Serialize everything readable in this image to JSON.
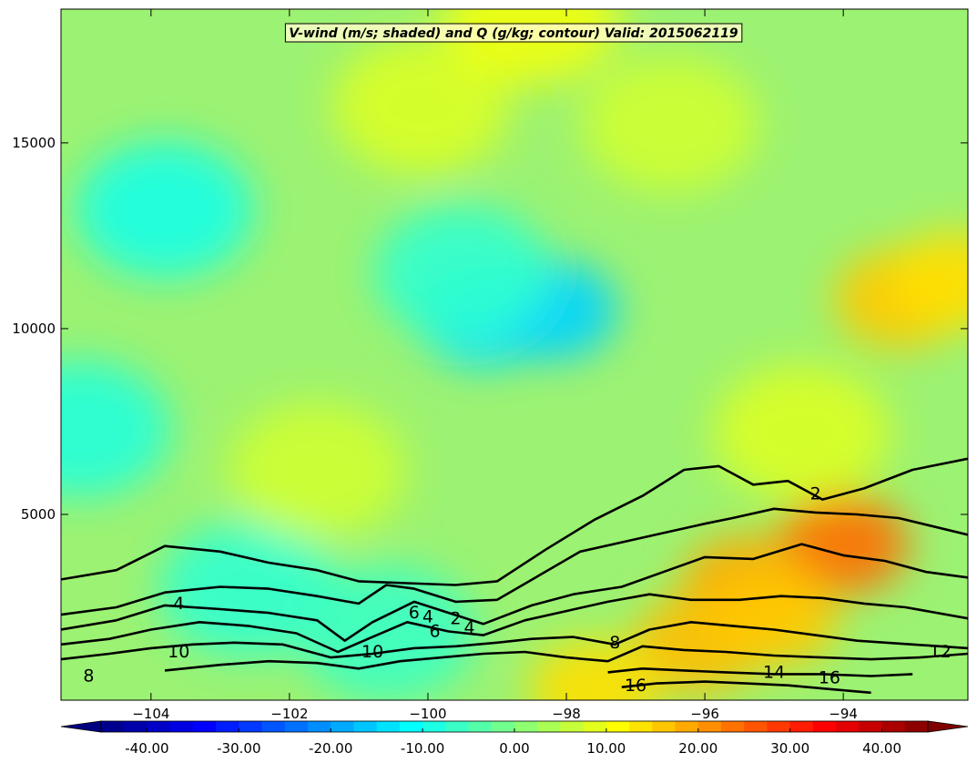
{
  "chart_data": {
    "type": "heatmap",
    "title": "V-wind (m/s; shaded) and Q (g/kg; contour) Valid: 2015062119",
    "xlabel": "",
    "ylabel": "",
    "xlim": [
      -105.3,
      -92.2
    ],
    "ylim": [
      0,
      18600
    ],
    "x_ticks": [
      -104,
      -102,
      -100,
      -98,
      -96,
      -94
    ],
    "x_tick_labels": [
      "−104",
      "−102",
      "−100",
      "−98",
      "−96",
      "−94"
    ],
    "y_ticks": [
      5000,
      10000,
      15000
    ],
    "y_tick_labels": [
      "5000",
      "10000",
      "15000"
    ],
    "colorbar": {
      "min": -45,
      "max": 45,
      "step": 2.5,
      "extend": "both",
      "tick_values": [
        -40,
        -30,
        -20,
        -10,
        0,
        10,
        20,
        30,
        40
      ],
      "tick_labels": [
        "-40.00",
        "-30.00",
        "-20.00",
        "-10.00",
        "0.00",
        "10.00",
        "20.00",
        "30.00",
        "40.00"
      ]
    },
    "vwind_features": [
      {
        "x": -99.2,
        "y": 10300,
        "value": -14
      },
      {
        "x": -98.2,
        "y": 10500,
        "value": -15
      },
      {
        "x": -103.8,
        "y": 13200,
        "value": -9
      },
      {
        "x": -105.0,
        "y": 7300,
        "value": -8
      },
      {
        "x": -99.5,
        "y": 11500,
        "value": -7
      },
      {
        "x": -102.6,
        "y": 3000,
        "value": -7
      },
      {
        "x": -100.6,
        "y": 1800,
        "value": -6
      },
      {
        "x": -93.2,
        "y": 10800,
        "value": 16
      },
      {
        "x": -92.4,
        "y": 11300,
        "value": 14
      },
      {
        "x": -94.0,
        "y": 4200,
        "value": 24
      },
      {
        "x": -95.4,
        "y": 3100,
        "value": 19
      },
      {
        "x": -96.1,
        "y": 1500,
        "value": 17
      },
      {
        "x": -95.0,
        "y": 2200,
        "value": 16
      },
      {
        "x": -97.6,
        "y": 300,
        "value": 14
      },
      {
        "x": -100.1,
        "y": 16000,
        "value": 8
      },
      {
        "x": -101.6,
        "y": 6200,
        "value": 7
      },
      {
        "x": -94.6,
        "y": 7200,
        "value": 8
      },
      {
        "x": -98.5,
        "y": 18400,
        "value": 10
      },
      {
        "x": -96.5,
        "y": 15500,
        "value": 7
      }
    ],
    "q_contours": [
      {
        "level": 2,
        "points": [
          [
            -105.3,
            3250
          ],
          [
            -104.5,
            3500
          ],
          [
            -103.8,
            4150
          ],
          [
            -103.0,
            4000
          ],
          [
            -102.3,
            3700
          ],
          [
            -101.6,
            3500
          ],
          [
            -101.0,
            3200
          ],
          [
            -100.3,
            3150
          ],
          [
            -99.6,
            3100
          ],
          [
            -99.0,
            3200
          ],
          [
            -98.3,
            4050
          ],
          [
            -97.6,
            4850
          ],
          [
            -96.9,
            5500
          ],
          [
            -96.3,
            6200
          ],
          [
            -95.8,
            6300
          ],
          [
            -95.3,
            5800
          ],
          [
            -94.8,
            5900
          ],
          [
            -94.3,
            5400
          ],
          [
            -93.7,
            5700
          ],
          [
            -93.0,
            6200
          ],
          [
            -92.2,
            6500
          ]
        ]
      },
      {
        "level": 4,
        "points": [
          [
            -105.3,
            2300
          ],
          [
            -104.5,
            2500
          ],
          [
            -103.8,
            2900
          ],
          [
            -103.0,
            3050
          ],
          [
            -102.3,
            3000
          ],
          [
            -101.6,
            2800
          ],
          [
            -101.0,
            2600
          ],
          [
            -100.6,
            3100
          ],
          [
            -100.2,
            3000
          ],
          [
            -99.6,
            2650
          ],
          [
            -99.0,
            2700
          ],
          [
            -98.4,
            3350
          ],
          [
            -97.8,
            4000
          ],
          [
            -97.2,
            4250
          ],
          [
            -96.6,
            4500
          ],
          [
            -96.0,
            4750
          ],
          [
            -95.6,
            4900
          ],
          [
            -95.0,
            5150
          ],
          [
            -94.4,
            5050
          ],
          [
            -93.8,
            5000
          ],
          [
            -93.2,
            4900
          ],
          [
            -92.2,
            4450
          ]
        ]
      },
      {
        "level": 6,
        "points": [
          [
            -105.3,
            1900
          ],
          [
            -104.5,
            2150
          ],
          [
            -103.8,
            2550
          ],
          [
            -103.0,
            2450
          ],
          [
            -102.3,
            2350
          ],
          [
            -101.6,
            2150
          ],
          [
            -101.2,
            1600
          ],
          [
            -100.8,
            2100
          ],
          [
            -100.2,
            2650
          ],
          [
            -99.7,
            2350
          ],
          [
            -99.2,
            2050
          ],
          [
            -98.5,
            2550
          ],
          [
            -97.9,
            2850
          ],
          [
            -97.2,
            3050
          ],
          [
            -96.6,
            3450
          ],
          [
            -96.0,
            3850
          ],
          [
            -95.3,
            3800
          ],
          [
            -94.6,
            4200
          ],
          [
            -94.0,
            3900
          ],
          [
            -93.4,
            3750
          ],
          [
            -92.8,
            3450
          ],
          [
            -92.2,
            3300
          ]
        ]
      },
      {
        "level": 8,
        "points": [
          [
            -105.3,
            1500
          ],
          [
            -104.6,
            1650
          ],
          [
            -104.0,
            1900
          ],
          [
            -103.3,
            2100
          ],
          [
            -102.6,
            2000
          ],
          [
            -101.9,
            1800
          ],
          [
            -101.3,
            1300
          ],
          [
            -100.8,
            1700
          ],
          [
            -100.3,
            2100
          ],
          [
            -99.7,
            1850
          ],
          [
            -99.2,
            1750
          ],
          [
            -98.6,
            2150
          ],
          [
            -98.0,
            2400
          ],
          [
            -97.4,
            2650
          ],
          [
            -96.8,
            2850
          ],
          [
            -96.2,
            2700
          ],
          [
            -95.5,
            2700
          ],
          [
            -94.9,
            2800
          ],
          [
            -94.3,
            2750
          ],
          [
            -93.7,
            2600
          ],
          [
            -93.1,
            2500
          ],
          [
            -92.2,
            2200
          ]
        ]
      },
      {
        "level": 10,
        "points": [
          [
            -105.3,
            1100
          ],
          [
            -104.6,
            1250
          ],
          [
            -104.0,
            1400
          ],
          [
            -103.4,
            1500
          ],
          [
            -102.8,
            1550
          ],
          [
            -102.1,
            1500
          ],
          [
            -101.4,
            1150
          ],
          [
            -100.8,
            1250
          ],
          [
            -100.2,
            1400
          ],
          [
            -99.6,
            1450
          ],
          [
            -99.0,
            1550
          ],
          [
            -98.5,
            1650
          ],
          [
            -97.9,
            1700
          ],
          [
            -97.3,
            1500
          ],
          [
            -96.8,
            1900
          ],
          [
            -96.2,
            2100
          ],
          [
            -95.6,
            2000
          ],
          [
            -95.0,
            1900
          ],
          [
            -94.4,
            1750
          ],
          [
            -93.8,
            1600
          ],
          [
            -93.0,
            1500
          ],
          [
            -92.2,
            1400
          ]
        ]
      },
      {
        "level": 12,
        "points": [
          [
            -103.8,
            800
          ],
          [
            -103.0,
            950
          ],
          [
            -102.3,
            1050
          ],
          [
            -101.6,
            1000
          ],
          [
            -101.0,
            850
          ],
          [
            -100.4,
            1050
          ],
          [
            -99.8,
            1150
          ],
          [
            -99.2,
            1250
          ],
          [
            -98.6,
            1300
          ],
          [
            -98.0,
            1150
          ],
          [
            -97.4,
            1050
          ],
          [
            -96.9,
            1450
          ],
          [
            -96.3,
            1350
          ],
          [
            -95.7,
            1300
          ],
          [
            -95.0,
            1200
          ],
          [
            -94.3,
            1150
          ],
          [
            -93.6,
            1100
          ],
          [
            -92.9,
            1150
          ],
          [
            -92.2,
            1250
          ]
        ]
      },
      {
        "level": 14,
        "points": [
          [
            -97.4,
            750
          ],
          [
            -96.9,
            850
          ],
          [
            -96.3,
            800
          ],
          [
            -95.7,
            750
          ],
          [
            -95.0,
            700
          ],
          [
            -94.3,
            700
          ],
          [
            -93.6,
            650
          ],
          [
            -93.0,
            700
          ]
        ]
      },
      {
        "level": 16,
        "points": [
          [
            -97.2,
            350
          ],
          [
            -96.7,
            450
          ],
          [
            -96.0,
            500
          ],
          [
            -95.4,
            450
          ],
          [
            -94.8,
            400
          ],
          [
            -94.2,
            300
          ],
          [
            -93.6,
            200
          ]
        ]
      }
    ],
    "contour_labels": [
      {
        "text": "2",
        "x": -94.4,
        "y": 5400
      },
      {
        "text": "4",
        "x": -103.6,
        "y": 2450
      },
      {
        "text": "6",
        "x": -100.2,
        "y": 2200
      },
      {
        "text": "4",
        "x": -100.0,
        "y": 2100
      },
      {
        "text": "2",
        "x": -99.6,
        "y": 2050
      },
      {
        "text": "6",
        "x": -99.9,
        "y": 1700
      },
      {
        "text": "4",
        "x": -99.4,
        "y": 1800
      },
      {
        "text": "10",
        "x": -103.6,
        "y": 1150
      },
      {
        "text": "10",
        "x": -100.8,
        "y": 1150
      },
      {
        "text": "8",
        "x": -104.9,
        "y": 500
      },
      {
        "text": "8",
        "x": -97.3,
        "y": 1400
      },
      {
        "text": "16",
        "x": -97.0,
        "y": 250
      },
      {
        "text": "14",
        "x": -95.0,
        "y": 600
      },
      {
        "text": "16",
        "x": -94.2,
        "y": 450
      },
      {
        "text": "12",
        "x": -92.6,
        "y": 1150
      }
    ]
  }
}
